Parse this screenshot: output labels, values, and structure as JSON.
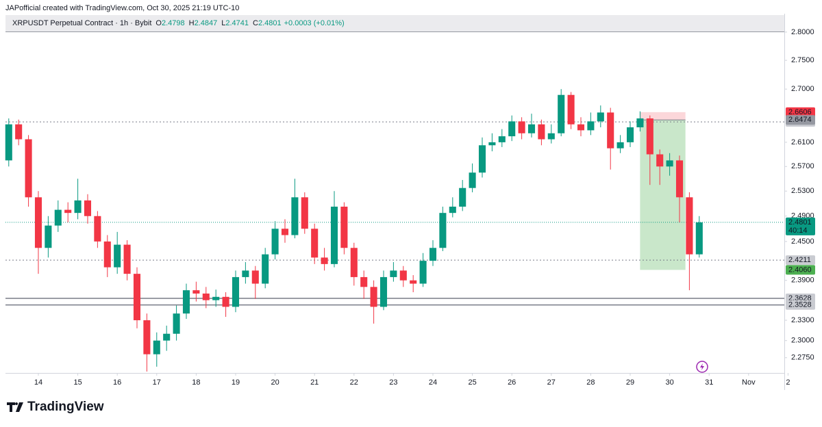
{
  "header": "JAPofficial created with TradingView.com, Oct 30, 2025 21:19 UTC-10",
  "brand": "TradingView",
  "chart_data": {
    "type": "candlestick",
    "legend": {
      "symbol": "XRPUSDT Perpetual Contract · 1h · Bybit",
      "fields": [
        {
          "key": "O",
          "value": 2.4798
        },
        {
          "key": "H",
          "value": 2.4847
        },
        {
          "key": "L",
          "value": 2.4741
        },
        {
          "key": "C",
          "value": 2.4801
        }
      ],
      "change": {
        "value": 0.0003,
        "label": "+0.0003 (+0.01%)"
      }
    },
    "up_color": "#089981",
    "down_color": "#f23645",
    "log_scale": true,
    "xlim": [
      13.167,
      32.906
    ],
    "xticks": [
      14,
      15,
      16,
      17,
      18,
      19,
      20,
      21,
      22,
      23,
      24,
      25,
      26,
      27,
      28,
      29,
      30,
      31,
      {
        "value": 32,
        "label": "Nov"
      },
      {
        "value": 33,
        "label": "2"
      }
    ],
    "ylim": [
      2.253,
      2.833
    ],
    "yticks": [
      {
        "value": 2.8,
        "label": "2.8000"
      },
      {
        "value": 2.75,
        "label": "2.7500"
      },
      {
        "value": 2.7,
        "label": "2.7000"
      },
      {
        "value": 2.61,
        "label": "2.6100"
      },
      {
        "value": 2.57,
        "label": "2.5700"
      },
      {
        "value": 2.53,
        "label": "2.5300"
      },
      {
        "value": 2.49,
        "label": "2.4900"
      },
      {
        "value": 2.45,
        "label": "2.4500"
      },
      {
        "value": 2.39,
        "label": "2.3900"
      },
      {
        "value": 2.33,
        "label": "2.3300"
      },
      {
        "value": 2.3,
        "label": "2.3000"
      },
      {
        "value": 2.275,
        "label": "2.2750"
      }
    ],
    "x": [
      13.25,
      13.5,
      13.75,
      14,
      14.25,
      14.5,
      14.75,
      15,
      15.25,
      15.5,
      15.75,
      16,
      16.25,
      16.5,
      16.75,
      17,
      17.25,
      17.5,
      17.75,
      18,
      18.25,
      18.5,
      18.75,
      19,
      19.25,
      19.5,
      19.75,
      20,
      20.25,
      20.5,
      20.75,
      21,
      21.25,
      21.5,
      21.75,
      22,
      22.25,
      22.5,
      22.75,
      23,
      23.25,
      23.5,
      23.75,
      24,
      24.25,
      24.5,
      24.75,
      25,
      25.25,
      25.5,
      25.75,
      26,
      26.25,
      26.5,
      26.75,
      27,
      27.25,
      27.5,
      27.75,
      28,
      28.25,
      28.5,
      28.75,
      29,
      29.25,
      29.5,
      29.75,
      30,
      30.25,
      30.5,
      30.75
    ],
    "open": [
      2.58,
      2.64,
      2.615,
      2.52,
      2.44,
      2.475,
      2.5,
      2.495,
      2.515,
      2.49,
      2.45,
      2.41,
      2.445,
      2.4,
      2.33,
      2.28,
      2.3,
      2.31,
      2.34,
      2.375,
      2.37,
      2.36,
      2.365,
      2.35,
      2.395,
      2.405,
      2.385,
      2.43,
      2.47,
      2.46,
      2.52,
      2.47,
      2.425,
      2.415,
      2.505,
      2.44,
      2.395,
      2.38,
      2.35,
      2.395,
      2.405,
      2.39,
      2.385,
      2.42,
      2.44,
      2.495,
      2.505,
      2.535,
      2.56,
      2.605,
      2.61,
      2.62,
      2.645,
      2.625,
      2.64,
      2.615,
      2.625,
      2.69,
      2.64,
      2.63,
      2.645,
      2.66,
      2.6,
      2.61,
      2.635,
      2.65,
      2.59,
      2.57,
      2.58,
      2.52,
      2.43
    ],
    "high": [
      2.65,
      2.648,
      2.622,
      2.53,
      2.49,
      2.515,
      2.512,
      2.55,
      2.525,
      2.498,
      2.46,
      2.465,
      2.452,
      2.41,
      2.34,
      2.312,
      2.322,
      2.352,
      2.385,
      2.388,
      2.38,
      2.376,
      2.372,
      2.405,
      2.418,
      2.412,
      2.44,
      2.482,
      2.485,
      2.55,
      2.528,
      2.478,
      2.44,
      2.53,
      2.512,
      2.448,
      2.405,
      2.39,
      2.405,
      2.418,
      2.412,
      2.398,
      2.432,
      2.452,
      2.505,
      2.52,
      2.548,
      2.575,
      2.618,
      2.625,
      2.632,
      2.655,
      2.652,
      2.658,
      2.648,
      2.64,
      2.7,
      2.695,
      2.652,
      2.66,
      2.672,
      2.668,
      2.622,
      2.645,
      2.662,
      2.655,
      2.598,
      2.592,
      2.588,
      2.528,
      2.49
    ],
    "low": [
      2.57,
      2.605,
      2.505,
      2.4,
      2.425,
      2.465,
      2.48,
      2.485,
      2.478,
      2.44,
      2.395,
      2.4,
      2.39,
      2.318,
      2.255,
      2.262,
      2.285,
      2.3,
      2.332,
      2.358,
      2.348,
      2.35,
      2.335,
      2.342,
      2.385,
      2.362,
      2.378,
      2.422,
      2.448,
      2.455,
      2.462,
      2.415,
      2.405,
      2.41,
      2.43,
      2.382,
      2.362,
      2.325,
      2.345,
      2.388,
      2.38,
      2.372,
      2.38,
      2.412,
      2.435,
      2.488,
      2.498,
      2.528,
      2.552,
      2.595,
      2.602,
      2.612,
      2.615,
      2.618,
      2.605,
      2.608,
      2.62,
      2.632,
      2.62,
      2.622,
      2.635,
      2.565,
      2.592,
      2.602,
      2.628,
      2.54,
      2.54,
      2.555,
      2.48,
      2.375,
      2.425
    ],
    "close": [
      2.64,
      2.615,
      2.52,
      2.44,
      2.475,
      2.5,
      2.495,
      2.515,
      2.49,
      2.45,
      2.41,
      2.445,
      2.4,
      2.33,
      2.28,
      2.3,
      2.31,
      2.34,
      2.375,
      2.37,
      2.36,
      2.365,
      2.35,
      2.395,
      2.405,
      2.385,
      2.43,
      2.47,
      2.46,
      2.52,
      2.47,
      2.425,
      2.415,
      2.505,
      2.44,
      2.395,
      2.38,
      2.35,
      2.395,
      2.405,
      2.39,
      2.385,
      2.42,
      2.44,
      2.495,
      2.505,
      2.535,
      2.56,
      2.605,
      2.61,
      2.62,
      2.645,
      2.625,
      2.64,
      2.615,
      2.625,
      2.69,
      2.64,
      2.63,
      2.645,
      2.66,
      2.6,
      2.61,
      2.635,
      2.65,
      2.59,
      2.57,
      2.58,
      2.52,
      2.43,
      2.48
    ],
    "levels": [
      {
        "value": 2.6442,
        "style": "dotted"
      },
      {
        "value": 2.4211,
        "style": "dotted"
      },
      {
        "value": 2.3628,
        "style": "solid"
      },
      {
        "value": 2.3528,
        "style": "solid"
      }
    ],
    "current_price": {
      "value": 2.4801,
      "countdown": "40:14",
      "color": "#089981"
    },
    "position": {
      "xlim": [
        29.25,
        30.4
      ],
      "stop": 2.6606,
      "entry": 2.6474,
      "target": {
        "value": 2.406,
        "label": "2.4060"
      },
      "stop_color": "#f23645",
      "target_color": "#4caf50"
    }
  }
}
